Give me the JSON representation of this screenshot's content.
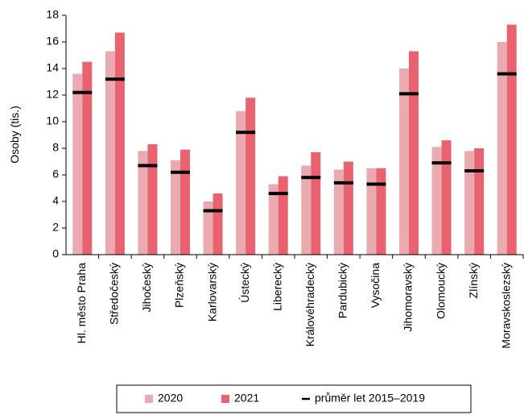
{
  "chart_data": {
    "type": "bar",
    "title": "",
    "xlabel": "",
    "ylabel": "Osoby (tis.)",
    "ylim": [
      0,
      18
    ],
    "yticks": [
      0,
      2,
      4,
      6,
      8,
      10,
      12,
      14,
      16,
      18
    ],
    "grid": false,
    "legend_position": "bottom",
    "categories": [
      "Hl. město Praha",
      "Středočeský",
      "Jihočeský",
      "Plzeňský",
      "Karlovarský",
      "Ústecký",
      "Liberecký",
      "Královéhradecký",
      "Pardubický",
      "Vysočina",
      "Jihomoravský",
      "Olomoucký",
      "Zlínský",
      "Moravskoslezský"
    ],
    "series": [
      {
        "name": "2020",
        "kind": "bar",
        "color": "#e9aab0",
        "values": [
          13.6,
          15.3,
          7.8,
          7.1,
          4.0,
          10.8,
          5.3,
          6.7,
          6.4,
          6.5,
          14.0,
          8.1,
          7.8,
          16.0
        ]
      },
      {
        "name": "2021",
        "kind": "bar",
        "color": "#e8636f",
        "values": [
          14.5,
          16.7,
          8.3,
          7.9,
          4.6,
          11.8,
          5.9,
          7.7,
          7.0,
          6.5,
          15.3,
          8.6,
          8.0,
          17.3
        ]
      },
      {
        "name": "průměr let 2015–2019",
        "kind": "marker",
        "color": "#000000",
        "values": [
          12.2,
          13.2,
          6.7,
          6.2,
          3.3,
          9.2,
          4.6,
          5.8,
          5.4,
          5.3,
          12.1,
          6.9,
          6.3,
          13.6
        ]
      }
    ]
  }
}
